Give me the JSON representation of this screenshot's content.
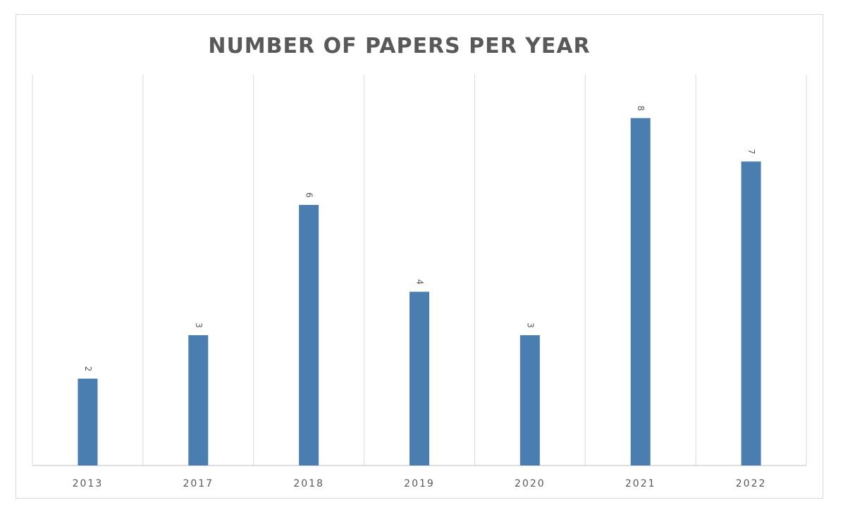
{
  "chart_data": {
    "type": "bar",
    "title": "NUMBER OF PAPERS PER YEAR",
    "categories": [
      "2013",
      "2017",
      "2018",
      "2019",
      "2020",
      "2021",
      "2022"
    ],
    "values": [
      2,
      3,
      6,
      4,
      3,
      8,
      7
    ],
    "ylim": [
      0,
      9
    ],
    "grid": "vertical category separators",
    "legend": "none",
    "colors": {
      "bar": "#4a7eb0",
      "grid": "#d9d9d9",
      "axis": "#bfbfbf",
      "text": "#595959"
    }
  }
}
